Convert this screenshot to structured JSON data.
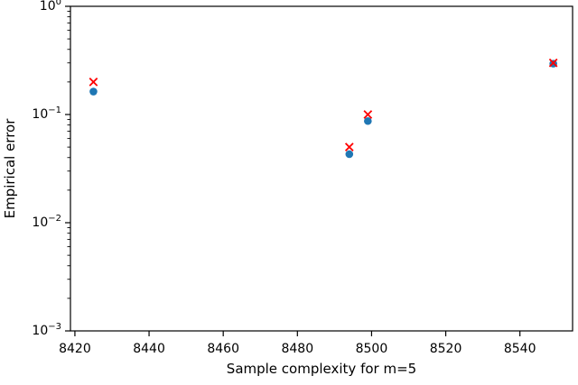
{
  "figure": {
    "background": "#ffffff"
  },
  "chart_data": {
    "type": "scatter",
    "title": "",
    "xlabel": "Sample complexity for m=5",
    "ylabel": "Empirical error",
    "x_scale": "linear",
    "y_scale": "log",
    "xlim": [
      8418.8,
      8554.2
    ],
    "ylim": [
      0.001,
      1.0
    ],
    "x_ticks": [
      8420,
      8440,
      8460,
      8480,
      8500,
      8520,
      8540
    ],
    "y_ticks": [
      {
        "base": "10",
        "exp": "0",
        "value": 1.0
      },
      {
        "base": "10",
        "exp": "−1",
        "value": 0.1
      },
      {
        "base": "10",
        "exp": "−2",
        "value": 0.01
      },
      {
        "base": "10",
        "exp": "−3",
        "value": 0.001
      }
    ],
    "grid": false,
    "legend": null,
    "series": [
      {
        "name": "empirical-error-circles",
        "marker": "circle",
        "color": "#1f77b4",
        "points": [
          {
            "x": 8425,
            "y": 0.163
          },
          {
            "x": 8494,
            "y": 0.043
          },
          {
            "x": 8499,
            "y": 0.087
          },
          {
            "x": 8549,
            "y": 0.295
          }
        ]
      },
      {
        "name": "target-error-crosses",
        "marker": "x",
        "color": "#ff0000",
        "points": [
          {
            "x": 8425,
            "y": 0.2
          },
          {
            "x": 8494,
            "y": 0.05
          },
          {
            "x": 8499,
            "y": 0.1
          },
          {
            "x": 8549,
            "y": 0.3
          }
        ]
      }
    ],
    "axis_color": "#000000",
    "tick_direction": "out"
  }
}
